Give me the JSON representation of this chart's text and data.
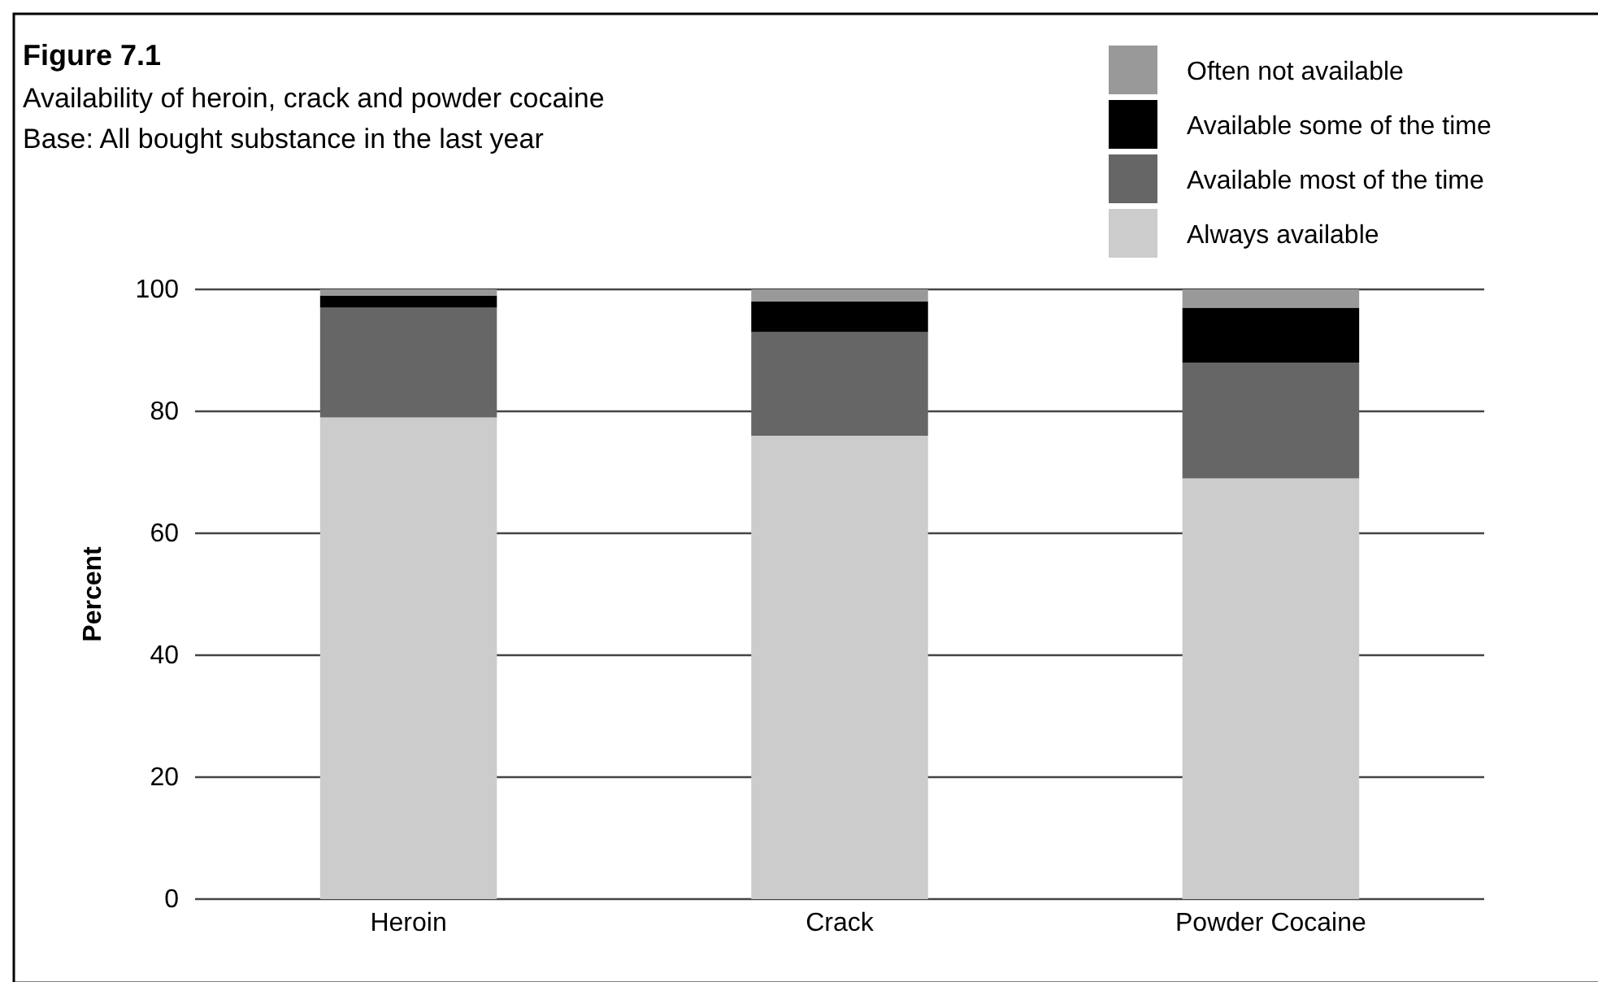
{
  "chart_data": {
    "type": "bar",
    "stacked": true,
    "title": "Figure 7.1",
    "subtitle": "Availability of heroin, crack and powder cocaine",
    "annotations": [
      "Base: All bought substance in the last year"
    ],
    "ylabel": "Percent",
    "categories": [
      "Heroin",
      "Crack",
      "Powder Cocaine"
    ],
    "series": [
      {
        "name": "Always available",
        "color": "#cccccc",
        "values": [
          79,
          76,
          69
        ]
      },
      {
        "name": "Available most of the time",
        "color": "#666666",
        "values": [
          18,
          17,
          19
        ]
      },
      {
        "name": "Available some of the time",
        "color": "#000000",
        "values": [
          2,
          5,
          9
        ]
      },
      {
        "name": "Often not available",
        "color": "#999999",
        "values": [
          1,
          2,
          3
        ]
      }
    ],
    "ylim": [
      0,
      100
    ],
    "yticks": [
      0,
      20,
      40,
      60,
      80,
      100
    ],
    "grid": "y",
    "legend": "top right"
  }
}
